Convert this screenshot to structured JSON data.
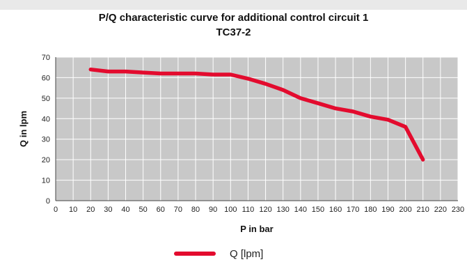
{
  "chart_data": {
    "type": "line",
    "title": "P/Q characteristic curve for additional control circuit 1",
    "subtitle": "TC37-2",
    "xlabel": "P in bar",
    "ylabel": "Q in lpm",
    "xlim": [
      0,
      230
    ],
    "ylim": [
      0,
      70
    ],
    "xticks": [
      0,
      10,
      20,
      30,
      40,
      50,
      60,
      70,
      80,
      90,
      100,
      110,
      120,
      130,
      140,
      150,
      160,
      170,
      180,
      190,
      200,
      210,
      220,
      230
    ],
    "yticks": [
      0,
      10,
      20,
      30,
      40,
      50,
      60,
      70
    ],
    "grid": true,
    "legend_position": "bottom",
    "plot_background": "#c8c8c8",
    "series": [
      {
        "name": "Q [lpm]",
        "color": "#e30b2e",
        "x": [
          20,
          30,
          40,
          50,
          60,
          70,
          80,
          90,
          100,
          110,
          120,
          130,
          140,
          150,
          160,
          170,
          180,
          190,
          200,
          210
        ],
        "y": [
          64,
          63,
          63,
          62.5,
          62,
          62,
          62,
          61.5,
          61.5,
          59.5,
          57,
          54,
          50,
          47.5,
          45,
          43.5,
          41,
          39.5,
          36,
          20
        ]
      }
    ]
  }
}
